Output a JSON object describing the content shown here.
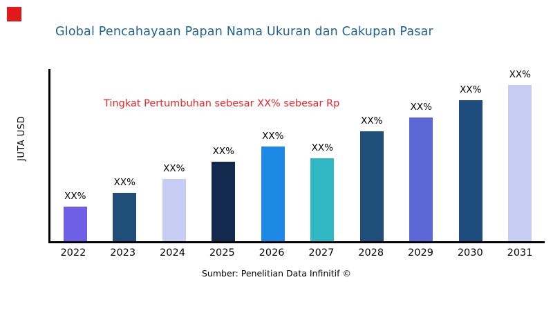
{
  "page": {
    "title": "Global Pencahayaan Papan Nama Ukuran dan Cakupan Pasar",
    "title_color": "#1F6391",
    "annotation": "Tingkat Pertumbuhan sebesar XX% sebesar Rp",
    "annotation_color": "#E8262A",
    "source": "Sumber: Penelitian Data Infinitif ©",
    "logo_color": "#E01A1A"
  },
  "chart_data": {
    "type": "bar",
    "title": "Global Pencahayaan Papan Nama Ukuran dan Cakupan Pasar",
    "xlabel": "",
    "ylabel": "JUTA USD",
    "ylim": [
      0,
      100
    ],
    "grid": false,
    "legend": false,
    "categories": [
      "2022",
      "2023",
      "2024",
      "2025",
      "2026",
      "2027",
      "2028",
      "2029",
      "2030",
      "2031"
    ],
    "values": [
      20,
      28,
      36,
      46,
      55,
      48,
      64,
      72,
      82,
      91
    ],
    "data_labels": [
      "XX%",
      "XX%",
      "XX%",
      "XX%",
      "XX%",
      "XX%",
      "XX%",
      "XX%",
      "XX%",
      "XX%"
    ],
    "bar_colors": [
      "#6E5FE6",
      "#1F4E79",
      "#C7CCF2",
      "#14294E",
      "#1E88E5",
      "#30B8C4",
      "#1F4E79",
      "#5C68D6",
      "#1E4C7C",
      "#C7CCF2"
    ],
    "annotation": "Tingkat Pertumbuhan sebesar XX% sebesar Rp"
  }
}
